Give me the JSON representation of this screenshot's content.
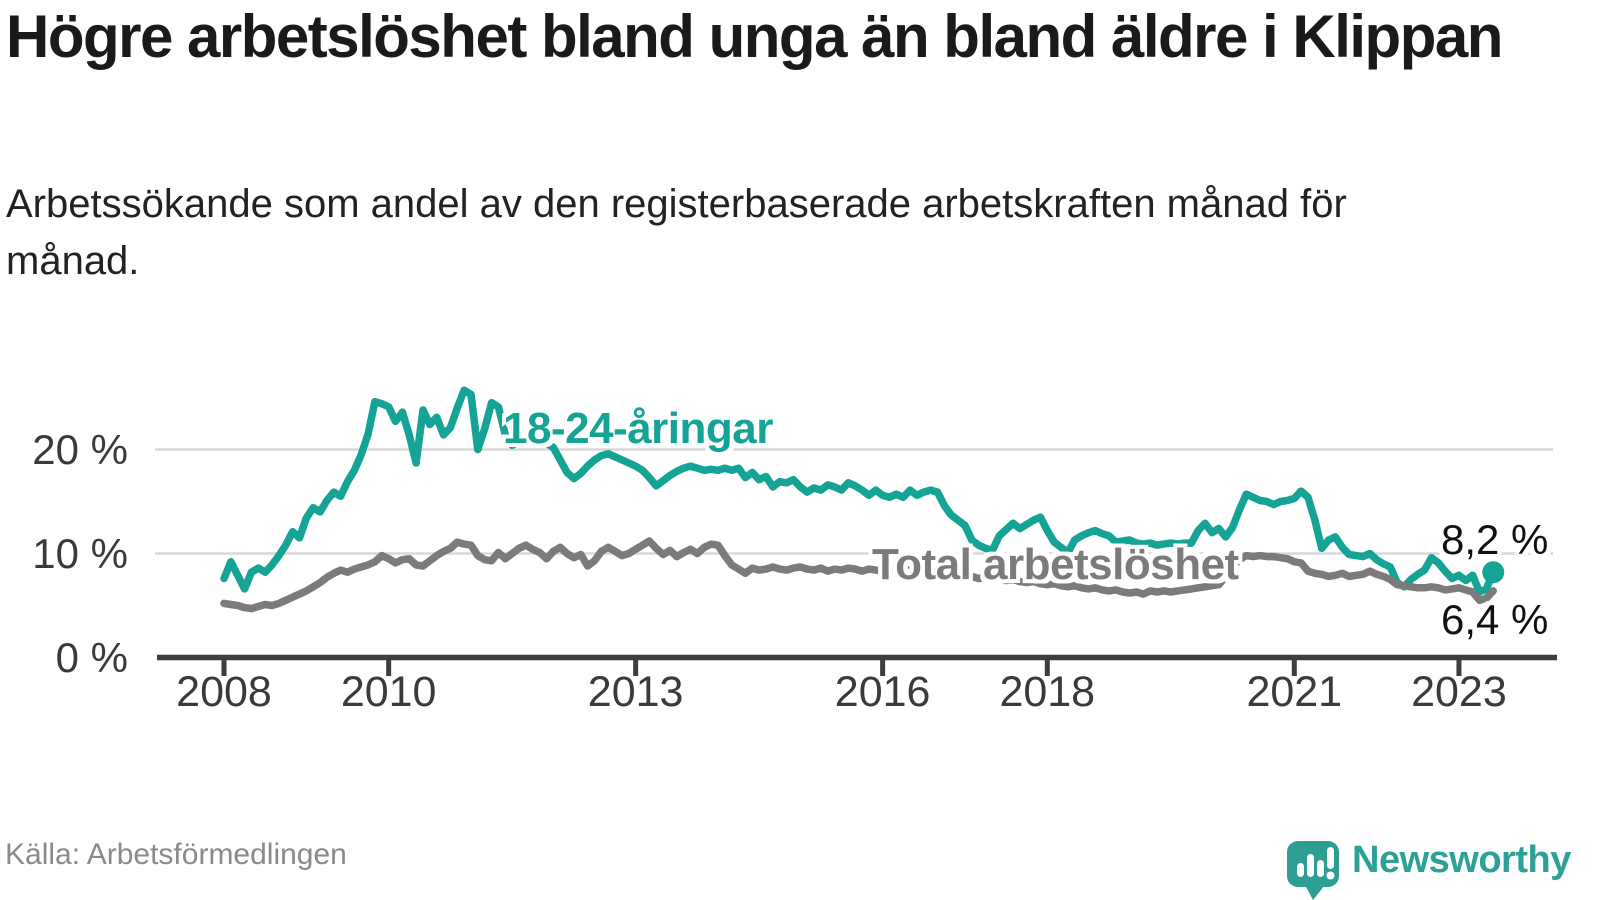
{
  "title": "Högre arbetslöshet bland unga än bland äldre i Klippan",
  "subtitle": "Arbetssökande som andel av den registerbaserade arbetskraften månad för månad.",
  "source": "Källa: Arbetsförmedlingen",
  "logo": {
    "text": "Newsworthy"
  },
  "colors": {
    "youth": "#14a394",
    "total": "#7b7b7b",
    "grid": "#d8d8d8",
    "axis": "#3d3d3d",
    "logo": "#2ba198"
  },
  "chart_data": {
    "type": "line",
    "title": "Högre arbetslöshet bland unga än bland äldre i Klippan",
    "x_unit": "month",
    "x_start": "2008-01",
    "x_end": "2023-06",
    "x_tick_years": [
      2008,
      2010,
      2013,
      2016,
      2018,
      2021,
      2023
    ],
    "x_tick_labels": [
      "2008",
      "2010",
      "2013",
      "2016",
      "2018",
      "2021",
      "2023"
    ],
    "y_ticks": [
      {
        "value": 0,
        "label": "0 %"
      },
      {
        "value": 10,
        "label": "10 %"
      },
      {
        "value": 20,
        "label": "20 %"
      }
    ],
    "ylim": [
      0,
      27
    ],
    "grid": true,
    "series": [
      {
        "name": "18-24-åringar",
        "color": "#14a394",
        "end_label": "8,2 %",
        "end_value": 8.2,
        "values": [
          7.6,
          9.2,
          7.9,
          6.6,
          8.2,
          8.6,
          8.2,
          8.9,
          9.8,
          10.8,
          12.1,
          11.5,
          13.4,
          14.4,
          14.0,
          15.1,
          15.9,
          15.5,
          16.9,
          18.0,
          19.5,
          21.5,
          24.6,
          24.4,
          24.1,
          22.7,
          23.6,
          21.4,
          18.7,
          23.8,
          22.4,
          23.1,
          21.4,
          22.1,
          24.0,
          25.7,
          25.3,
          20.0,
          22.0,
          24.5,
          24.1,
          21.4,
          20.4,
          20.8,
          21.0,
          21.2,
          21.0,
          20.6,
          20.2,
          19.0,
          17.8,
          17.2,
          17.7,
          18.4,
          19.0,
          19.4,
          19.6,
          19.3,
          19.0,
          18.7,
          18.4,
          18.0,
          17.3,
          16.5,
          17.0,
          17.5,
          17.9,
          18.2,
          18.4,
          18.2,
          18.0,
          18.1,
          18.0,
          18.2,
          18.0,
          18.2,
          17.3,
          17.8,
          17.1,
          17.4,
          16.4,
          16.9,
          16.8,
          17.1,
          16.4,
          15.9,
          16.3,
          16.1,
          16.6,
          16.4,
          16.1,
          16.8,
          16.5,
          16.1,
          15.6,
          16.1,
          15.6,
          15.4,
          15.7,
          15.4,
          16.1,
          15.6,
          15.9,
          16.1,
          15.9,
          14.6,
          13.7,
          13.2,
          12.7,
          11.3,
          10.8,
          10.5,
          10.3,
          11.7,
          12.3,
          12.9,
          12.4,
          12.8,
          13.2,
          13.5,
          12.2,
          11.1,
          10.6,
          10.1,
          11.3,
          11.7,
          12.0,
          12.2,
          11.9,
          11.7,
          11.1,
          11.2,
          11.3,
          11.0,
          10.9,
          11.0,
          10.8,
          10.9,
          11.0,
          10.9,
          11.0,
          11.0,
          12.2,
          12.9,
          12.0,
          12.4,
          11.6,
          12.5,
          14.2,
          15.7,
          15.4,
          15.1,
          15.0,
          14.7,
          15.0,
          15.1,
          15.3,
          16.0,
          15.4,
          13.2,
          10.5,
          11.3,
          11.6,
          10.6,
          9.9,
          9.8,
          9.7,
          10.0,
          9.4,
          9.0,
          8.7,
          7.2,
          6.8,
          7.5,
          8.0,
          8.4,
          9.6,
          9.1,
          8.3,
          7.6,
          7.9,
          7.4,
          7.9,
          6.3,
          6.6,
          8.2
        ]
      },
      {
        "name": "Total arbetslöshet",
        "color": "#7b7b7b",
        "end_label": "6,4 %",
        "end_value": 6.4,
        "values": [
          5.2,
          5.1,
          5.0,
          4.8,
          4.7,
          4.9,
          5.1,
          5.0,
          5.2,
          5.5,
          5.8,
          6.1,
          6.4,
          6.8,
          7.2,
          7.7,
          8.1,
          8.4,
          8.2,
          8.5,
          8.7,
          8.9,
          9.2,
          9.8,
          9.5,
          9.1,
          9.4,
          9.5,
          8.9,
          8.8,
          9.3,
          9.8,
          10.2,
          10.5,
          11.1,
          10.9,
          10.8,
          9.8,
          9.4,
          9.3,
          10.1,
          9.5,
          10.0,
          10.5,
          10.8,
          10.4,
          10.1,
          9.5,
          10.2,
          10.6,
          10.0,
          9.6,
          9.9,
          8.8,
          9.3,
          10.2,
          10.6,
          10.2,
          9.8,
          10.0,
          10.4,
          10.8,
          11.2,
          10.5,
          9.9,
          10.3,
          9.7,
          10.1,
          10.4,
          10.0,
          10.6,
          10.9,
          10.8,
          9.8,
          8.9,
          8.5,
          8.1,
          8.6,
          8.4,
          8.5,
          8.7,
          8.5,
          8.4,
          8.6,
          8.7,
          8.5,
          8.4,
          8.6,
          8.3,
          8.5,
          8.4,
          8.6,
          8.5,
          8.3,
          8.5,
          8.4,
          8.3,
          8.5,
          8.4,
          8.6,
          8.4,
          8.3,
          8.2,
          8.1,
          8.0,
          7.9,
          7.8,
          7.8,
          7.7,
          7.8,
          7.6,
          7.7,
          7.5,
          7.6,
          7.4,
          7.5,
          7.3,
          7.2,
          7.3,
          7.1,
          7.0,
          7.1,
          6.9,
          6.8,
          6.9,
          6.7,
          6.6,
          6.7,
          6.5,
          6.4,
          6.5,
          6.3,
          6.2,
          6.3,
          6.1,
          6.4,
          6.3,
          6.4,
          6.3,
          6.4,
          6.5,
          6.6,
          6.7,
          6.8,
          6.9,
          7.0,
          7.8,
          8.8,
          9.4,
          9.8,
          9.7,
          9.8,
          9.7,
          9.7,
          9.6,
          9.5,
          9.2,
          9.1,
          8.3,
          8.1,
          8.0,
          7.8,
          7.9,
          8.1,
          7.8,
          7.9,
          8.0,
          8.3,
          8.0,
          7.8,
          7.5,
          7.0,
          6.9,
          6.8,
          6.7,
          6.7,
          6.8,
          6.7,
          6.5,
          6.6,
          6.7,
          6.5,
          6.3,
          5.5,
          5.7,
          6.4
        ]
      }
    ],
    "legend_position": "inline-labels"
  }
}
